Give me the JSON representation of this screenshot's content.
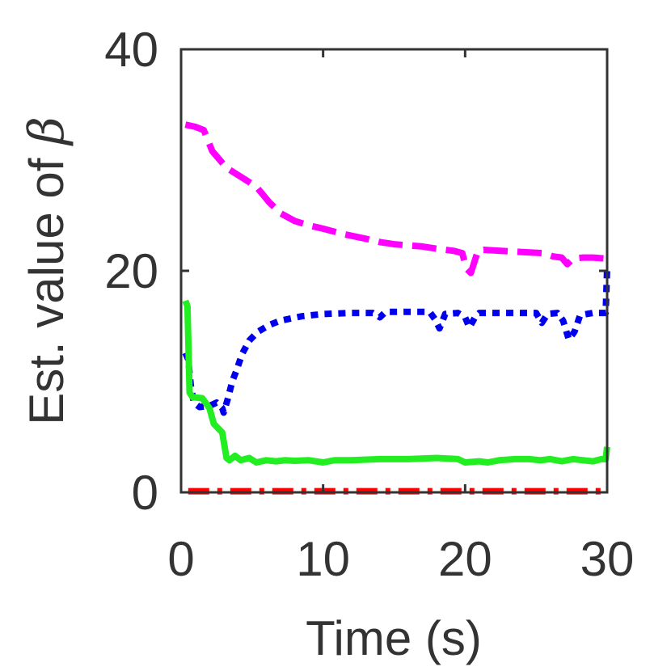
{
  "chart_data": {
    "type": "line",
    "xlabel": "Time (s)",
    "ylabel_prefix": "Est. value of ",
    "ylabel_symbol": "β",
    "xlim": [
      0,
      30
    ],
    "ylim": [
      0,
      40
    ],
    "xticks": [
      0,
      10,
      20,
      30
    ],
    "xtick_labels": [
      "0",
      "10",
      "20",
      "30"
    ],
    "yticks": [
      0,
      20,
      40
    ],
    "ytick_labels": [
      "0",
      "20",
      "40"
    ],
    "grid": false,
    "series": [
      {
        "name": "magenta-dashed",
        "color": "#ff00ff",
        "style": "dashed",
        "points": [
          [
            0.3,
            33.2
          ],
          [
            1.0,
            33.0
          ],
          [
            1.6,
            32.7
          ],
          [
            2.2,
            30.8
          ],
          [
            3.2,
            29.3
          ],
          [
            4.2,
            28.5
          ],
          [
            5.3,
            27.6
          ],
          [
            6.2,
            26.2
          ],
          [
            7.0,
            25.2
          ],
          [
            8.0,
            24.5
          ],
          [
            9.0,
            24.1
          ],
          [
            10.0,
            23.8
          ],
          [
            11.5,
            23.3
          ],
          [
            13.0,
            22.9
          ],
          [
            14.0,
            22.6
          ],
          [
            15.0,
            22.4
          ],
          [
            16.0,
            22.3
          ],
          [
            17.0,
            22.2
          ],
          [
            18.0,
            22.0
          ],
          [
            19.2,
            21.8
          ],
          [
            19.8,
            21.6
          ],
          [
            20.1,
            20.2
          ],
          [
            20.4,
            19.8
          ],
          [
            20.6,
            20.6
          ],
          [
            20.9,
            21.8
          ],
          [
            21.3,
            21.9
          ],
          [
            22.5,
            21.8
          ],
          [
            24.0,
            21.7
          ],
          [
            25.5,
            21.6
          ],
          [
            26.2,
            21.3
          ],
          [
            26.8,
            21.2
          ],
          [
            27.2,
            20.6
          ],
          [
            27.6,
            21.1
          ],
          [
            28.3,
            21.2
          ],
          [
            29.0,
            21.2
          ],
          [
            30.0,
            21.1
          ]
        ]
      },
      {
        "name": "blue-dotted",
        "color": "#0000ee",
        "style": "dotted",
        "points": [
          [
            0.3,
            12.6
          ],
          [
            0.5,
            12.0
          ],
          [
            0.7,
            9.5
          ],
          [
            0.9,
            8.1
          ],
          [
            1.3,
            7.7
          ],
          [
            2.0,
            7.8
          ],
          [
            2.5,
            8.1
          ],
          [
            2.9,
            7.6
          ],
          [
            3.0,
            7.2
          ],
          [
            3.3,
            8.5
          ],
          [
            3.6,
            10.0
          ],
          [
            3.9,
            11.0
          ],
          [
            4.3,
            12.5
          ],
          [
            4.8,
            13.7
          ],
          [
            5.4,
            14.5
          ],
          [
            6.2,
            15.1
          ],
          [
            7.0,
            15.5
          ],
          [
            8.5,
            15.9
          ],
          [
            10.0,
            16.1
          ],
          [
            12.0,
            16.2
          ],
          [
            13.5,
            16.2
          ],
          [
            14.0,
            15.8
          ],
          [
            14.4,
            16.3
          ],
          [
            16.0,
            16.3
          ],
          [
            17.5,
            16.3
          ],
          [
            17.9,
            15.6
          ],
          [
            18.2,
            14.8
          ],
          [
            18.6,
            16.1
          ],
          [
            19.5,
            16.2
          ],
          [
            20.0,
            15.8
          ],
          [
            20.3,
            14.9
          ],
          [
            20.7,
            15.8
          ],
          [
            21.0,
            16.2
          ],
          [
            23.0,
            16.2
          ],
          [
            25.0,
            16.2
          ],
          [
            25.4,
            15.3
          ],
          [
            25.8,
            16.1
          ],
          [
            26.5,
            16.2
          ],
          [
            26.9,
            15.5
          ],
          [
            27.3,
            13.8
          ],
          [
            27.7,
            14.5
          ],
          [
            28.1,
            16.0
          ],
          [
            29.0,
            16.2
          ],
          [
            29.9,
            16.2
          ],
          [
            30.0,
            20.3
          ]
        ]
      },
      {
        "name": "green-solid",
        "color": "#22ee22",
        "style": "solid",
        "points": [
          [
            0.3,
            17.3
          ],
          [
            0.45,
            16.8
          ],
          [
            0.6,
            9.0
          ],
          [
            0.8,
            8.6
          ],
          [
            1.5,
            8.5
          ],
          [
            2.0,
            7.6
          ],
          [
            2.3,
            6.2
          ],
          [
            2.9,
            5.4
          ],
          [
            3.2,
            3.1
          ],
          [
            3.4,
            2.9
          ],
          [
            3.8,
            3.3
          ],
          [
            4.2,
            2.9
          ],
          [
            4.8,
            3.1
          ],
          [
            5.3,
            2.7
          ],
          [
            6.0,
            2.9
          ],
          [
            6.7,
            2.8
          ],
          [
            7.3,
            2.9
          ],
          [
            8.0,
            2.85
          ],
          [
            9.0,
            2.9
          ],
          [
            10.0,
            2.7
          ],
          [
            10.8,
            2.9
          ],
          [
            12.0,
            2.9
          ],
          [
            14.0,
            3.0
          ],
          [
            16.0,
            3.0
          ],
          [
            18.0,
            3.1
          ],
          [
            19.5,
            3.0
          ],
          [
            20.0,
            2.7
          ],
          [
            21.0,
            2.8
          ],
          [
            21.6,
            2.7
          ],
          [
            22.4,
            2.9
          ],
          [
            23.5,
            3.0
          ],
          [
            24.5,
            3.0
          ],
          [
            25.3,
            2.9
          ],
          [
            26.0,
            3.0
          ],
          [
            26.8,
            2.8
          ],
          [
            27.6,
            3.0
          ],
          [
            28.3,
            2.9
          ],
          [
            29.0,
            2.8
          ],
          [
            29.6,
            3.0
          ],
          [
            29.9,
            3.0
          ],
          [
            30.0,
            4.1
          ]
        ]
      },
      {
        "name": "red-dash-dot",
        "color": "#ff0000",
        "style": "dashdot",
        "points": [
          [
            0.5,
            0.1
          ],
          [
            30.0,
            0.1
          ]
        ]
      }
    ]
  }
}
